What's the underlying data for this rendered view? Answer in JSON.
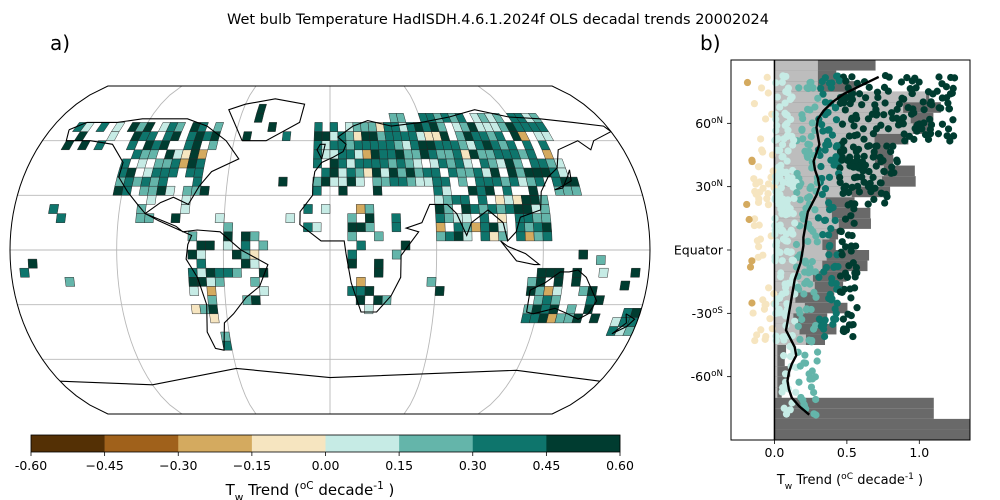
{
  "title": "Wet bulb Temperature HadISDH.4.6.1.2024f OLS decadal trends 20002024",
  "panel_a": {
    "label": "a)",
    "colorbar": {
      "colors": [
        "#543005",
        "#a0611b",
        "#d4aa5f",
        "#f6e5c0",
        "#c6ebe5",
        "#64b5aa",
        "#0e756c",
        "#003c30"
      ],
      "ticks": [
        "-0.60",
        "−0.45",
        "−0.30",
        "−0.15",
        "0.00",
        "0.15",
        "0.30",
        "0.45",
        "0.60"
      ],
      "label": "T_w Trend (^oC decade^-1 )"
    }
  },
  "chart_data": {
    "type": "scatter",
    "label": "b)",
    "xlabel": "T_w Trend (^oC decade^-1 )",
    "xlim": [
      -0.3,
      1.35
    ],
    "ylim": [
      -90,
      90
    ],
    "xticks": [
      0.0,
      0.5,
      1.0
    ],
    "xtick_labels": [
      "0.0",
      "0.5",
      "1.0"
    ],
    "yticks": [
      60,
      30,
      0,
      -30,
      -60
    ],
    "ytick_labels": [
      "60^oN",
      "30^oN",
      "Equator",
      "-30^oS",
      "-60^oN"
    ],
    "zonal_mean_line": {
      "lat": [
        82,
        78,
        74,
        70,
        66,
        62,
        58,
        54,
        50,
        46,
        42,
        38,
        34,
        30,
        26,
        22,
        18,
        14,
        10,
        6,
        2,
        -2,
        -6,
        -10,
        -14,
        -18,
        -22,
        -26,
        -30,
        -34,
        -38,
        -42,
        -46,
        -50,
        -54,
        -58,
        -62,
        -66,
        -70,
        -74,
        -78
      ],
      "trend": [
        0.72,
        0.6,
        0.48,
        0.4,
        0.34,
        0.3,
        0.29,
        0.3,
        0.31,
        0.29,
        0.27,
        0.28,
        0.3,
        0.31,
        0.29,
        0.26,
        0.23,
        0.22,
        0.21,
        0.2,
        0.2,
        0.19,
        0.18,
        0.16,
        0.14,
        0.13,
        0.12,
        0.11,
        0.1,
        0.09,
        0.08,
        0.11,
        0.14,
        0.15,
        0.12,
        0.1,
        0.09,
        0.1,
        0.12,
        0.17,
        0.24
      ]
    }
  }
}
